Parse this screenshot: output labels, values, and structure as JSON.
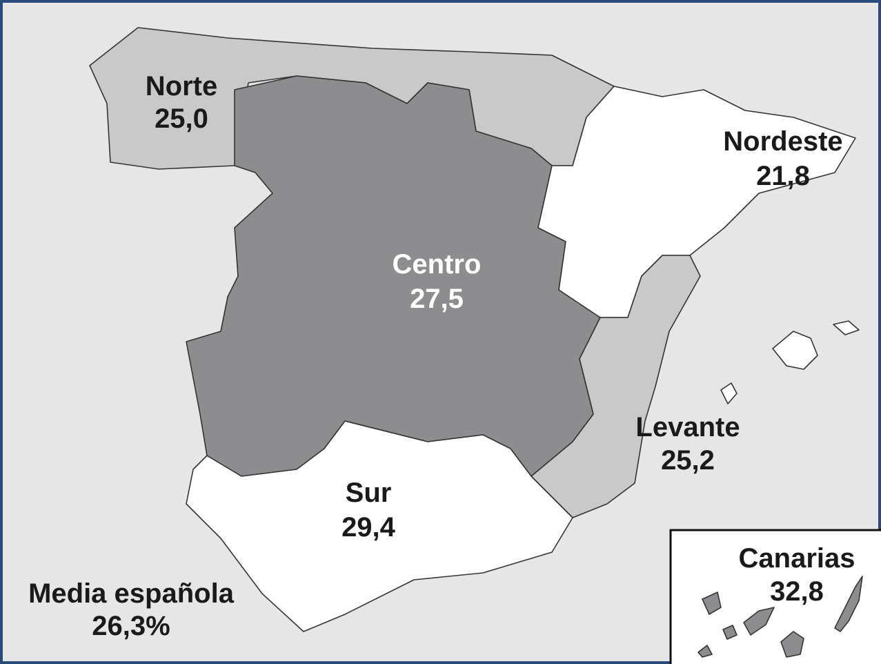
{
  "regions": [
    {
      "name": "Norte",
      "value": "25,0",
      "color": "#c9c9c9"
    },
    {
      "name": "Nordeste",
      "value": "21,8",
      "color": "#ffffff"
    },
    {
      "name": "Centro",
      "value": "27,5",
      "color": "#8d8d90"
    },
    {
      "name": "Levante",
      "value": "25,2",
      "color": "#c9c9c9"
    },
    {
      "name": "Sur",
      "value": "29,4",
      "color": "#ffffff"
    },
    {
      "name": "Canarias",
      "value": "32,8",
      "color": "#8d8d90"
    }
  ],
  "average": {
    "label": "Media española",
    "value": "26,3%"
  }
}
